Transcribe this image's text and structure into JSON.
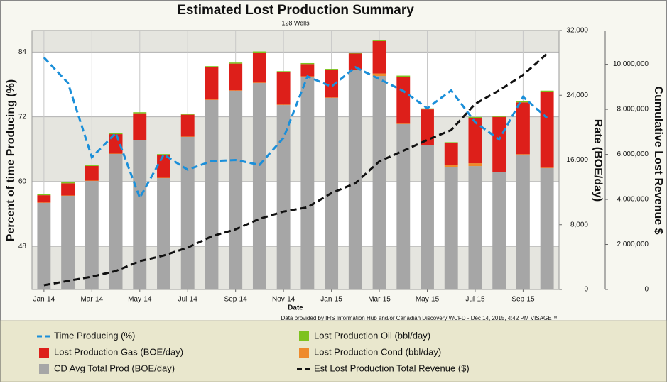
{
  "chart_data": {
    "type": "combo",
    "title": "Estimated Lost Production Summary",
    "subtitle": "128 Wells",
    "x_label": "Date",
    "y_label": "Percent of time Producing (%)",
    "y2_label": "Rate (BOE/day)",
    "y3_label": "Cumulative Lost Revenue $",
    "credit": "Data provided by IHS Information Hub and/or Canadian Discovery WCFD - Dec 14, 2015, 4:42 PM  VISAGE™",
    "categories": [
      "Jan-14",
      null,
      "Mar-14",
      null,
      "May-14",
      null,
      "Jul-14",
      null,
      "Sep-14",
      null,
      "Nov-14",
      null,
      "Jan-15",
      null,
      "Mar-15",
      null,
      "May-15",
      null,
      "Jul-15",
      null,
      "Sep-15",
      null
    ],
    "ylim": [
      40,
      88
    ],
    "yticks": [
      48,
      60,
      72,
      84
    ],
    "y2lim": [
      0,
      32000
    ],
    "y2ticks": [
      0,
      {
        "value": 8000,
        "label": "8,000"
      },
      {
        "value": 16000,
        "label": "16,000"
      },
      {
        "value": 24000,
        "label": "24,000"
      },
      {
        "value": 32000,
        "label": "32,000"
      }
    ],
    "y3lim": [
      0,
      11500000
    ],
    "y3ticks": [
      0,
      {
        "value": 2000000,
        "label": "2,000,000"
      },
      {
        "value": 4000000,
        "label": "4,000,000"
      },
      {
        "value": 6000000,
        "label": "6,000,000"
      },
      {
        "value": 8000000,
        "label": "8,000,000"
      },
      {
        "value": 10000000,
        "label": "10,000,000"
      }
    ],
    "grid": true,
    "banded": true,
    "legend": "bottom",
    "series": [
      {
        "name": "Time Producing (%)",
        "type": "line",
        "axis": "y",
        "color": "#1b8fd9",
        "values": [
          83,
          78.3,
          64.5,
          69,
          57,
          65,
          62.2,
          63.8,
          64,
          63.1,
          68.1,
          79.5,
          77.6,
          81.2,
          79,
          76.8,
          73.6,
          76.9,
          71,
          67.8,
          75.7,
          71.8
        ]
      },
      {
        "name": "Lost Production Oil (bbl/day)",
        "type": "bar",
        "axis": "y2",
        "color": "#7dc21e",
        "values": [
          120,
          120,
          130,
          130,
          130,
          120,
          130,
          130,
          130,
          140,
          130,
          120,
          130,
          130,
          150,
          140,
          120,
          120,
          120,
          120,
          120,
          120
        ]
      },
      {
        "name": "Lost Production Gas (BOE/day)",
        "type": "bar",
        "axis": "y2",
        "color": "#dd1f1a",
        "values": [
          900,
          1500,
          1800,
          2400,
          3300,
          2800,
          2700,
          4000,
          3300,
          3700,
          4000,
          1500,
          3400,
          2000,
          4000,
          5800,
          4400,
          2700,
          5600,
          6800,
          6400,
          9400
        ]
      },
      {
        "name": "Lost Production Cond (bbl/day)",
        "type": "bar",
        "axis": "y2",
        "color": "#ee8a2c",
        "values": [
          50,
          50,
          50,
          50,
          60,
          50,
          50,
          60,
          60,
          60,
          60,
          50,
          60,
          60,
          300,
          60,
          60,
          300,
          350,
          60,
          60,
          60
        ]
      },
      {
        "name": "CD Avg Total Prod (BOE/day)",
        "type": "bar",
        "axis": "y2",
        "color": "#a6a6a6",
        "values": [
          10700,
          11570,
          13410,
          16745,
          18410,
          13760,
          18850,
          23410,
          24550,
          25510,
          22790,
          26300,
          23670,
          27090,
          26390,
          20430,
          17800,
          15080,
          15250,
          14470,
          16660,
          14990
        ]
      },
      {
        "name": "Est Lost Production Total Revenue ($)",
        "type": "line",
        "axis": "y3",
        "color": "#111111",
        "values": [
          190000,
          380000,
          570000,
          820000,
          1260000,
          1510000,
          1860000,
          2360000,
          2670000,
          3140000,
          3460000,
          3650000,
          4280000,
          4720000,
          5690000,
          6160000,
          6640000,
          7080000,
          8240000,
          8840000,
          9530000,
          10470000
        ]
      }
    ]
  }
}
